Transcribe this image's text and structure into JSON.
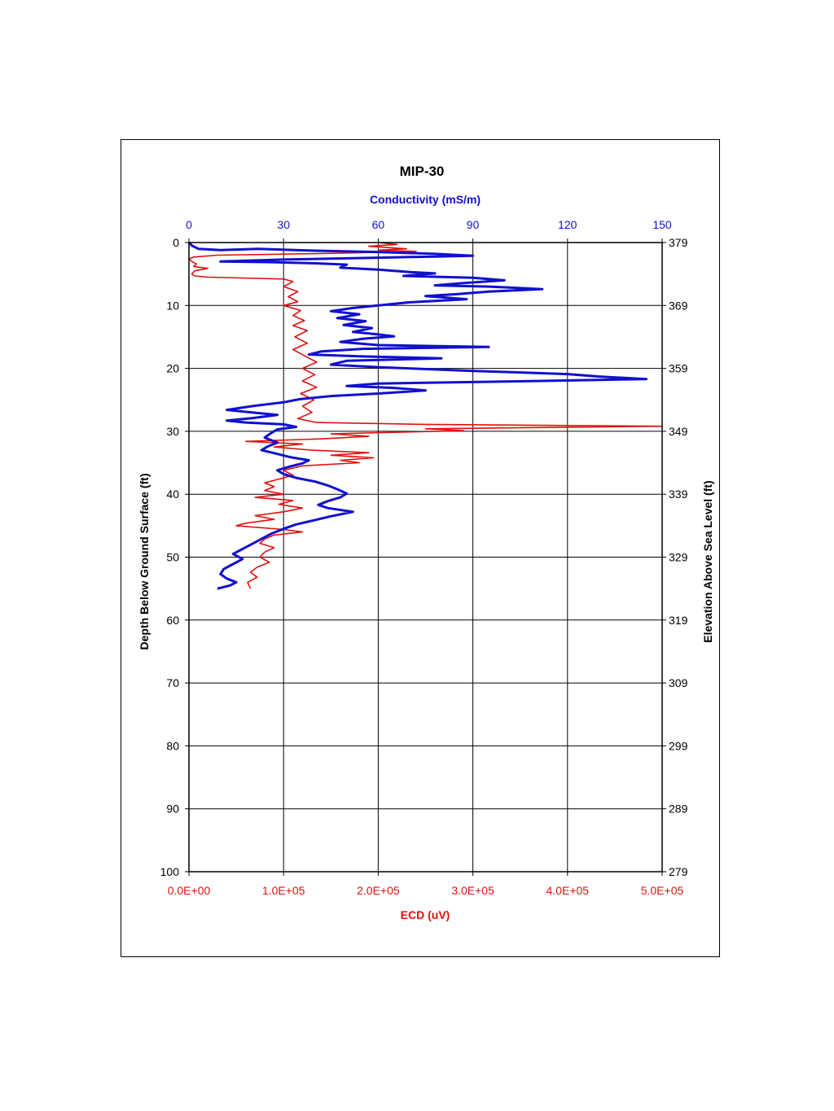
{
  "chart_data": {
    "type": "line",
    "title": "MIP-30",
    "top_axis": {
      "label": "Conductivity (mS/m)",
      "range": [
        0,
        150
      ],
      "ticks": [
        "0",
        "30",
        "60",
        "90",
        "120",
        "150"
      ],
      "color": "#1010d0"
    },
    "bottom_axis": {
      "label": "ECD (uV)",
      "range": [
        0,
        500000
      ],
      "ticks": [
        "0.0E+00",
        "1.0E+05",
        "2.0E+05",
        "3.0E+05",
        "4.0E+05",
        "5.0E+05"
      ],
      "color": "#e01010"
    },
    "left_axis": {
      "label": "Depth Below Ground Surface (ft)",
      "range": [
        0,
        100
      ],
      "ticks": [
        "0",
        "10",
        "20",
        "30",
        "40",
        "50",
        "60",
        "70",
        "80",
        "90",
        "100"
      ]
    },
    "right_axis": {
      "label": "Elevation Above Sea Level (ft)",
      "ticks": [
        "379",
        "369",
        "359",
        "349",
        "339",
        "329",
        "319",
        "309",
        "299",
        "289",
        "279"
      ]
    },
    "grid": true,
    "series": [
      {
        "color": "#1010d0",
        "axis": "top",
        "points": [
          [
            0,
            0
          ],
          [
            1,
            0.5
          ],
          [
            3,
            1
          ],
          [
            10,
            1.2
          ],
          [
            22,
            1.0
          ],
          [
            40,
            1.3
          ],
          [
            60,
            1.5
          ],
          [
            78,
            1.8
          ],
          [
            90,
            2.1
          ],
          [
            60,
            2.4
          ],
          [
            30,
            2.7
          ],
          [
            10,
            3.0
          ],
          [
            25,
            3.1
          ],
          [
            40,
            3.3
          ],
          [
            50,
            3.5
          ],
          [
            48,
            4.0
          ],
          [
            60,
            4.3
          ],
          [
            70,
            4.7
          ],
          [
            78,
            4.9
          ],
          [
            68,
            5.3
          ],
          [
            90,
            5.6
          ],
          [
            100,
            6.0
          ],
          [
            88,
            6.4
          ],
          [
            78,
            6.8
          ],
          [
            95,
            7.0
          ],
          [
            112,
            7.4
          ],
          [
            95,
            7.8
          ],
          [
            85,
            8.2
          ],
          [
            75,
            8.5
          ],
          [
            88,
            9.0
          ],
          [
            70,
            9.5
          ],
          [
            60,
            10.0
          ],
          [
            52,
            10.4
          ],
          [
            45,
            10.9
          ],
          [
            54,
            11.4
          ],
          [
            47,
            12.0
          ],
          [
            56,
            12.5
          ],
          [
            49,
            13.1
          ],
          [
            58,
            13.6
          ],
          [
            52,
            14.2
          ],
          [
            60,
            14.6
          ],
          [
            65,
            14.9
          ],
          [
            55,
            15.3
          ],
          [
            48,
            15.8
          ],
          [
            60,
            16.3
          ],
          [
            95,
            16.6
          ],
          [
            55,
            16.9
          ],
          [
            42,
            17.3
          ],
          [
            38,
            17.8
          ],
          [
            55,
            18.1
          ],
          [
            80,
            18.4
          ],
          [
            50,
            18.8
          ],
          [
            45,
            19.4
          ],
          [
            60,
            19.8
          ],
          [
            90,
            20.4
          ],
          [
            120,
            20.9
          ],
          [
            130,
            21.3
          ],
          [
            145,
            21.7
          ],
          [
            110,
            22.0
          ],
          [
            60,
            22.4
          ],
          [
            50,
            22.8
          ],
          [
            65,
            23.1
          ],
          [
            75,
            23.5
          ],
          [
            60,
            24.0
          ],
          [
            45,
            24.4
          ],
          [
            35,
            24.9
          ],
          [
            30,
            25.4
          ],
          [
            20,
            26.0
          ],
          [
            12,
            26.6
          ],
          [
            20,
            27.0
          ],
          [
            28,
            27.4
          ],
          [
            20,
            27.9
          ],
          [
            12,
            28.3
          ],
          [
            18,
            28.6
          ],
          [
            30,
            28.9
          ],
          [
            34,
            29.3
          ],
          [
            28,
            29.7
          ],
          [
            26,
            30.3
          ],
          [
            24,
            31.0
          ],
          [
            28,
            31.8
          ],
          [
            25,
            32.4
          ],
          [
            23,
            33.0
          ],
          [
            28,
            33.6
          ],
          [
            32,
            34.1
          ],
          [
            38,
            34.6
          ],
          [
            36,
            35.1
          ],
          [
            32,
            35.6
          ],
          [
            28,
            36.2
          ],
          [
            30,
            36.8
          ],
          [
            34,
            37.4
          ],
          [
            40,
            38.0
          ],
          [
            44,
            38.6
          ],
          [
            47,
            39.2
          ],
          [
            50,
            39.9
          ],
          [
            48,
            40.5
          ],
          [
            44,
            41.1
          ],
          [
            41,
            41.7
          ],
          [
            44,
            42.2
          ],
          [
            52,
            42.8
          ],
          [
            45,
            43.5
          ],
          [
            40,
            44.1
          ],
          [
            34,
            44.8
          ],
          [
            30,
            45.5
          ],
          [
            26,
            46.3
          ],
          [
            23,
            47.1
          ],
          [
            20,
            47.9
          ],
          [
            17,
            48.7
          ],
          [
            14,
            49.5
          ],
          [
            17,
            50.3
          ],
          [
            14,
            51.1
          ],
          [
            11,
            51.9
          ],
          [
            10,
            52.7
          ],
          [
            12,
            53.4
          ],
          [
            15,
            54.0
          ],
          [
            13,
            54.5
          ],
          [
            9,
            55.0
          ]
        ]
      },
      {
        "color": "#e01010",
        "axis": "bottom",
        "points": [
          [
            200000,
            0.0
          ],
          [
            220000,
            0.3
          ],
          [
            190000,
            0.6
          ],
          [
            230000,
            1.0
          ],
          [
            200000,
            1.2
          ],
          [
            240000,
            1.4
          ],
          [
            160000,
            1.7
          ],
          [
            30000,
            2.0
          ],
          [
            5000,
            2.3
          ],
          [
            0,
            2.6
          ],
          [
            3000,
            3.0
          ],
          [
            8000,
            3.4
          ],
          [
            5000,
            3.8
          ],
          [
            20000,
            4.1
          ],
          [
            6000,
            4.5
          ],
          [
            3000,
            5.0
          ],
          [
            6000,
            5.3
          ],
          [
            20000,
            5.5
          ],
          [
            100000,
            5.8
          ],
          [
            110000,
            6.2
          ],
          [
            100000,
            7.0
          ],
          [
            115000,
            7.8
          ],
          [
            105000,
            8.6
          ],
          [
            115000,
            9.4
          ],
          [
            100000,
            10.0
          ],
          [
            118000,
            10.8
          ],
          [
            110000,
            11.6
          ],
          [
            122000,
            12.4
          ],
          [
            110000,
            13.2
          ],
          [
            125000,
            14.0
          ],
          [
            112000,
            15.0
          ],
          [
            125000,
            16.0
          ],
          [
            110000,
            17.0
          ],
          [
            122000,
            18.0
          ],
          [
            135000,
            19.0
          ],
          [
            120000,
            20.0
          ],
          [
            133000,
            21.0
          ],
          [
            120000,
            22.0
          ],
          [
            135000,
            23.0
          ],
          [
            118000,
            24.0
          ],
          [
            132000,
            25.0
          ],
          [
            120000,
            26.0
          ],
          [
            130000,
            27.0
          ],
          [
            115000,
            28.0
          ],
          [
            135000,
            28.6
          ],
          [
            250000,
            28.9
          ],
          [
            500000,
            29.2
          ],
          [
            250000,
            29.6
          ],
          [
            290000,
            29.9
          ],
          [
            150000,
            30.4
          ],
          [
            190000,
            30.8
          ],
          [
            140000,
            31.2
          ],
          [
            60000,
            31.6
          ],
          [
            120000,
            32.0
          ],
          [
            90000,
            32.5
          ],
          [
            130000,
            33.0
          ],
          [
            190000,
            33.4
          ],
          [
            150000,
            33.8
          ],
          [
            195000,
            34.2
          ],
          [
            160000,
            34.6
          ],
          [
            180000,
            35.0
          ],
          [
            120000,
            35.5
          ],
          [
            100000,
            36.2
          ],
          [
            110000,
            37.0
          ],
          [
            95000,
            37.6
          ],
          [
            80000,
            38.2
          ],
          [
            90000,
            38.8
          ],
          [
            80000,
            39.4
          ],
          [
            100000,
            40.0
          ],
          [
            70000,
            40.5
          ],
          [
            110000,
            41.0
          ],
          [
            95000,
            41.6
          ],
          [
            120000,
            42.2
          ],
          [
            100000,
            42.8
          ],
          [
            70000,
            43.4
          ],
          [
            90000,
            44.0
          ],
          [
            60000,
            44.6
          ],
          [
            50000,
            45.0
          ],
          [
            100000,
            45.6
          ],
          [
            120000,
            46.0
          ],
          [
            90000,
            46.5
          ],
          [
            80000,
            47.1
          ],
          [
            75000,
            47.8
          ],
          [
            90000,
            48.5
          ],
          [
            80000,
            49.2
          ],
          [
            75000,
            50.0
          ],
          [
            85000,
            50.8
          ],
          [
            72000,
            51.6
          ],
          [
            65000,
            52.4
          ],
          [
            72000,
            53.2
          ],
          [
            62000,
            54.0
          ],
          [
            65000,
            55.0
          ]
        ]
      }
    ]
  }
}
